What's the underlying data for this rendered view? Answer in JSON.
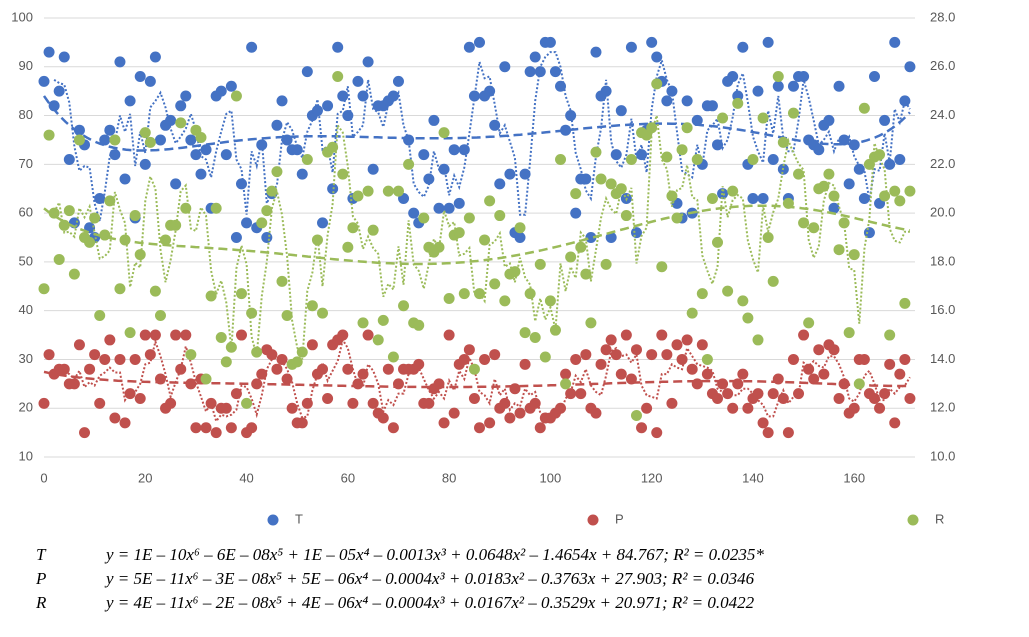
{
  "chart_data": {
    "type": "scatter",
    "x": [
      0,
      1,
      2,
      3,
      4,
      5,
      6,
      7,
      8,
      9,
      10,
      11,
      12,
      13,
      14,
      15,
      16,
      17,
      18,
      19,
      20,
      21,
      22,
      23,
      24,
      25,
      26,
      27,
      28,
      29,
      30,
      31,
      32,
      33,
      34,
      35,
      36,
      37,
      38,
      39,
      40,
      41,
      42,
      43,
      44,
      45,
      46,
      47,
      48,
      49,
      50,
      51,
      52,
      53,
      54,
      55,
      56,
      57,
      58,
      59,
      60,
      61,
      62,
      63,
      64,
      65,
      66,
      67,
      68,
      69,
      70,
      71,
      72,
      73,
      74,
      75,
      76,
      77,
      78,
      79,
      80,
      81,
      82,
      83,
      84,
      85,
      86,
      87,
      88,
      89,
      90,
      91,
      92,
      93,
      94,
      95,
      96,
      97,
      98,
      99,
      100,
      101,
      102,
      103,
      104,
      105,
      106,
      107,
      108,
      109,
      110,
      111,
      112,
      113,
      114,
      115,
      116,
      117,
      118,
      119,
      120,
      121,
      122,
      123,
      124,
      125,
      126,
      127,
      128,
      129,
      130,
      131,
      132,
      133,
      134,
      135,
      136,
      137,
      138,
      139,
      140,
      141,
      142,
      143,
      144,
      145,
      146,
      147,
      148,
      149,
      150,
      151,
      152,
      153,
      154,
      155,
      156,
      157,
      158,
      159,
      160,
      161,
      162,
      163,
      164,
      165,
      166,
      167,
      168,
      169,
      170,
      171
    ],
    "series": [
      {
        "name": "T",
        "color": "#4472c4",
        "values": [
          87,
          93,
          82,
          85,
          92,
          71,
          58,
          77,
          74,
          57,
          55,
          63,
          75,
          77,
          72,
          91,
          67,
          83,
          59,
          88,
          70,
          87,
          92,
          75,
          78,
          79,
          66,
          82,
          84,
          75,
          72,
          68,
          73,
          61,
          84,
          85,
          72,
          86,
          55,
          66,
          58,
          94,
          57,
          74,
          55,
          64,
          78,
          83,
          75,
          73,
          73,
          68,
          89,
          80,
          81,
          58,
          82,
          65,
          94,
          84,
          80,
          63,
          87,
          84,
          91,
          69,
          82,
          82,
          83,
          84,
          87,
          63,
          75,
          60,
          58,
          72,
          67,
          79,
          61,
          69,
          61,
          73,
          62,
          73,
          94,
          84,
          95,
          84,
          85,
          78,
          66,
          90,
          68,
          56,
          55,
          68,
          89,
          92,
          89,
          95,
          95,
          89,
          86,
          77,
          80,
          60,
          67,
          67,
          55,
          93,
          84,
          85,
          55,
          72,
          81,
          63,
          94,
          56,
          72,
          77,
          95,
          92,
          87,
          83,
          85,
          62,
          59,
          83,
          60,
          79,
          70,
          82,
          82,
          74,
          64,
          87,
          88,
          84,
          94,
          70,
          63,
          85,
          63,
          95,
          71,
          86,
          69,
          63,
          86,
          88,
          88,
          75,
          74,
          73,
          78,
          79,
          61,
          86,
          75,
          66,
          74,
          69,
          63,
          56,
          88,
          62,
          79,
          70,
          95,
          71,
          83,
          90
        ]
      },
      {
        "name": "P",
        "color": "#c0504d",
        "values": [
          21,
          31,
          27,
          28,
          28,
          25,
          25,
          33,
          15,
          28,
          31,
          21,
          30,
          34,
          18,
          30,
          17,
          23,
          30,
          22,
          35,
          31,
          35,
          26,
          20,
          21,
          35,
          28,
          35,
          25,
          16,
          26,
          16,
          21,
          15,
          20,
          20,
          16,
          23,
          35,
          15,
          16,
          25,
          27,
          32,
          31,
          28,
          30,
          26,
          20,
          17,
          17,
          21,
          33,
          27,
          28,
          22,
          33,
          34,
          35,
          28,
          21,
          25,
          27,
          35,
          21,
          19,
          18,
          28,
          16,
          25,
          28,
          28,
          28,
          29,
          21,
          21,
          24,
          25,
          17,
          35,
          19,
          29,
          30,
          32,
          22,
          16,
          30,
          17,
          31,
          20,
          21,
          18,
          24,
          19,
          29,
          20,
          21,
          16,
          18,
          18,
          19,
          20,
          27,
          23,
          30,
          23,
          31,
          20,
          19,
          29,
          32,
          34,
          31,
          27,
          35,
          26,
          32,
          16,
          20,
          31,
          15,
          35,
          31,
          21,
          33,
          30,
          34,
          28,
          25,
          33,
          27,
          23,
          22,
          25,
          23,
          20,
          25,
          27,
          20,
          22,
          23,
          17,
          15,
          23,
          26,
          22,
          15,
          30,
          23,
          35,
          28,
          26,
          32,
          27,
          33,
          32,
          22,
          25,
          19,
          20,
          30,
          30,
          23,
          22,
          20,
          23,
          29,
          17,
          27,
          30,
          22
        ]
      },
      {
        "name": "R",
        "color": "#9bbb59",
        "axis": "y2",
        "values": [
          16.9,
          23.2,
          20.0,
          18.1,
          19.5,
          20.1,
          17.5,
          23.0,
          19.0,
          18.8,
          19.8,
          15.8,
          19.1,
          20.5,
          23.0,
          16.9,
          18.9,
          15.1,
          19.9,
          18.3,
          23.3,
          22.9,
          16.8,
          15.8,
          18.9,
          19.5,
          19.5,
          23.7,
          20.2,
          14.2,
          23.4,
          23.1,
          13.2,
          16.6,
          20.2,
          14.9,
          13.9,
          14.5,
          24.8,
          16.7,
          12.2,
          15.9,
          14.3,
          19.6,
          20.1,
          20.9,
          21.7,
          17.2,
          15.8,
          13.8,
          13.9,
          14.3,
          22.2,
          16.2,
          18.9,
          15.9,
          22.5,
          22.7,
          25.6,
          21.6,
          18.6,
          19.4,
          20.7,
          15.5,
          20.9,
          19.3,
          14.8,
          15.6,
          20.9,
          14.1,
          20.9,
          16.2,
          22.0,
          15.5,
          15.4,
          19.8,
          18.6,
          18.4,
          18.6,
          23.3,
          16.5,
          19.1,
          19.2,
          16.7,
          19.8,
          13.6,
          16.7,
          18.9,
          20.5,
          17.1,
          19.9,
          16.4,
          17.5,
          17.6,
          19.4,
          15.1,
          16.7,
          14.9,
          17.9,
          14.1,
          16.4,
          15.2,
          22.2,
          13.0,
          18.2,
          20.8,
          18.6,
          17.5,
          15.5,
          22.5,
          21.4,
          17.9,
          21.2,
          20.8,
          21.0,
          19.9,
          22.2,
          11.7,
          23.3,
          23.2,
          23.5,
          25.3,
          17.8,
          22.3,
          20.7,
          19.8,
          22.6,
          23.5,
          15.9,
          22.2,
          16.7,
          14.0,
          20.6,
          18.8,
          23.9,
          16.8,
          20.9,
          24.5,
          16.4,
          15.7,
          22.2,
          14.8,
          23.9,
          19.0,
          17.2,
          25.6,
          22.9,
          20.4,
          24.1,
          21.6,
          19.6,
          15.5,
          19.4,
          21.0,
          21.1,
          21.6,
          20.7,
          18.5,
          19.6,
          15.1,
          18.3,
          13.0,
          24.3,
          22.0,
          22.3,
          22.4,
          20.7,
          15.0,
          20.9,
          20.5,
          16.3,
          20.9
        ]
      }
    ],
    "xlim": [
      0,
      172
    ],
    "xticks": [
      0,
      20,
      40,
      60,
      80,
      100,
      120,
      140,
      160
    ],
    "ylim": [
      10,
      100
    ],
    "yticks": [
      10,
      20,
      30,
      40,
      50,
      60,
      70,
      80,
      90,
      100
    ],
    "y2lim": [
      10,
      28
    ],
    "y2ticks": [
      {
        "value": 10,
        "label": "10.0"
      },
      {
        "value": 12,
        "label": "12.0"
      },
      {
        "value": 14,
        "label": "14.0"
      },
      {
        "value": 16,
        "label": "16.0"
      },
      {
        "value": 18,
        "label": "18.0"
      },
      {
        "value": 20,
        "label": "20.0"
      },
      {
        "value": 22,
        "label": "22.0"
      },
      {
        "value": 24,
        "label": "24.0"
      },
      {
        "value": 26,
        "label": "26.0"
      },
      {
        "value": 28,
        "label": "28.0"
      }
    ],
    "grid": true,
    "legend": "bottom",
    "equations": [
      {
        "label": "T",
        "text": "y = 1E – 10x⁶ – 6E – 08x⁵ + 1E – 05x⁴ – 0.0013x³ + 0.0648x² – 1.4654x + 84.767; R² = 0.0235*"
      },
      {
        "label": "P",
        "text": "y = 5E – 11x⁶ – 3E – 08x⁵ + 5E – 06x⁴ – 0.0004x³ + 0.0183x² – 0.3763x + 27.903; R² = 0.0346"
      },
      {
        "label": "R",
        "text": "y = 4E – 11x⁶ – 2E – 08x⁵ + 4E – 06x⁴ – 0.0004x³ + 0.0167x² – 0.3529x + 20.971; R² = 0.0422"
      }
    ]
  }
}
